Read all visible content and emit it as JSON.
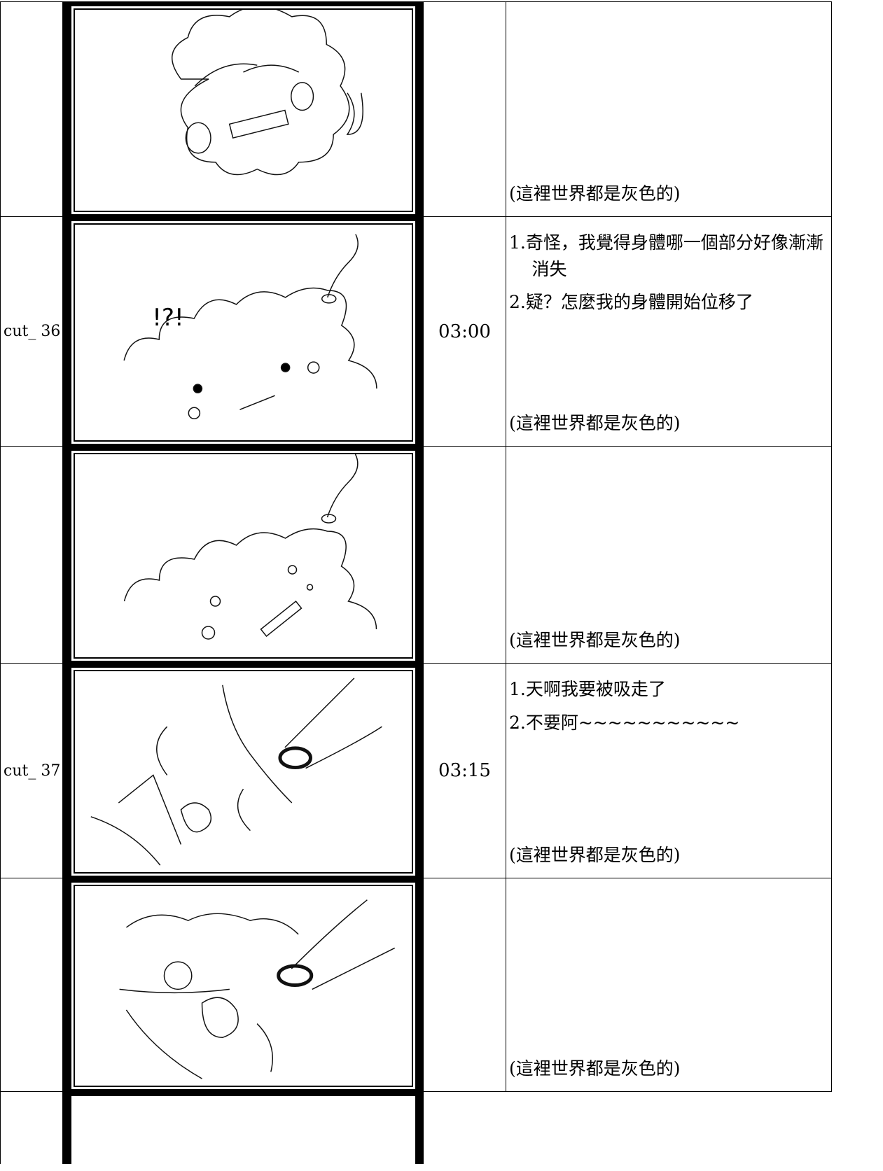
{
  "rows": [
    {
      "note": "(這裡世界都是灰色的)"
    },
    {
      "cut": "cut_ 36",
      "time": "03:00",
      "lines": [
        "1.奇怪，我覺得身體哪一個部分好像漸漸消失",
        "2.疑？怎麼我的身體開始位移了"
      ],
      "note": "(這裡世界都是灰色的)"
    },
    {
      "note": "(這裡世界都是灰色的)"
    },
    {
      "cut": "cut_ 37",
      "time": "03:15",
      "lines": [
        "1.天啊我要被吸走了",
        "2.不要阿~~~~~~~~~~~"
      ],
      "note": "(這裡世界都是灰色的)"
    },
    {
      "note": "(這裡世界都是灰色的)"
    }
  ]
}
